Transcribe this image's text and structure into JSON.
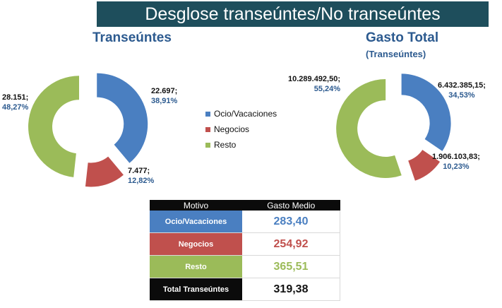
{
  "header": {
    "title": "Desglose transeúntes/No transeúntes"
  },
  "colors": {
    "ocio": "#4a7fc1",
    "negocios": "#c0504d",
    "resto": "#9bbb59",
    "total": "#0b0b0b",
    "header_bg": "#1e4e5c"
  },
  "legend": [
    {
      "label": "Ocio/Vacaciones",
      "color": "#4a7fc1"
    },
    {
      "label": "Negocios",
      "color": "#c0504d"
    },
    {
      "label": "Resto",
      "color": "#9bbb59"
    }
  ],
  "chart_data": [
    {
      "type": "pie",
      "title": "Transeúntes",
      "categories": [
        "Ocio/Vacaciones",
        "Negocios",
        "Resto"
      ],
      "values": [
        22697,
        7477,
        28151
      ],
      "value_labels": [
        "22.697;",
        "7.477;",
        "28.151;"
      ],
      "percent_labels": [
        "38,91%",
        "12,82%",
        "48,27%"
      ]
    },
    {
      "type": "pie",
      "title": "Gasto Total",
      "subtitle": "(Transeúntes)",
      "categories": [
        "Ocio/Vacaciones",
        "Negocios",
        "Resto"
      ],
      "values": [
        6432385.15,
        1906103.83,
        10289492.5
      ],
      "value_labels": [
        "6.432.385,15;",
        "1.906.103,83;",
        "10.289.492,50;"
      ],
      "percent_labels": [
        "34,53%",
        "10,23%",
        "55,24%"
      ]
    },
    {
      "type": "table",
      "columns": [
        "Motivo",
        "Gasto Medio"
      ],
      "rows": [
        {
          "motivo": "Ocio/Vacaciones",
          "gasto": "283,40",
          "value": 283.4
        },
        {
          "motivo": "Negocios",
          "gasto": "254,92",
          "value": 254.92
        },
        {
          "motivo": "Resto",
          "gasto": "365,51",
          "value": 365.51
        },
        {
          "motivo": "Total Transeúntes",
          "gasto": "319,38",
          "value": 319.38
        }
      ]
    }
  ]
}
